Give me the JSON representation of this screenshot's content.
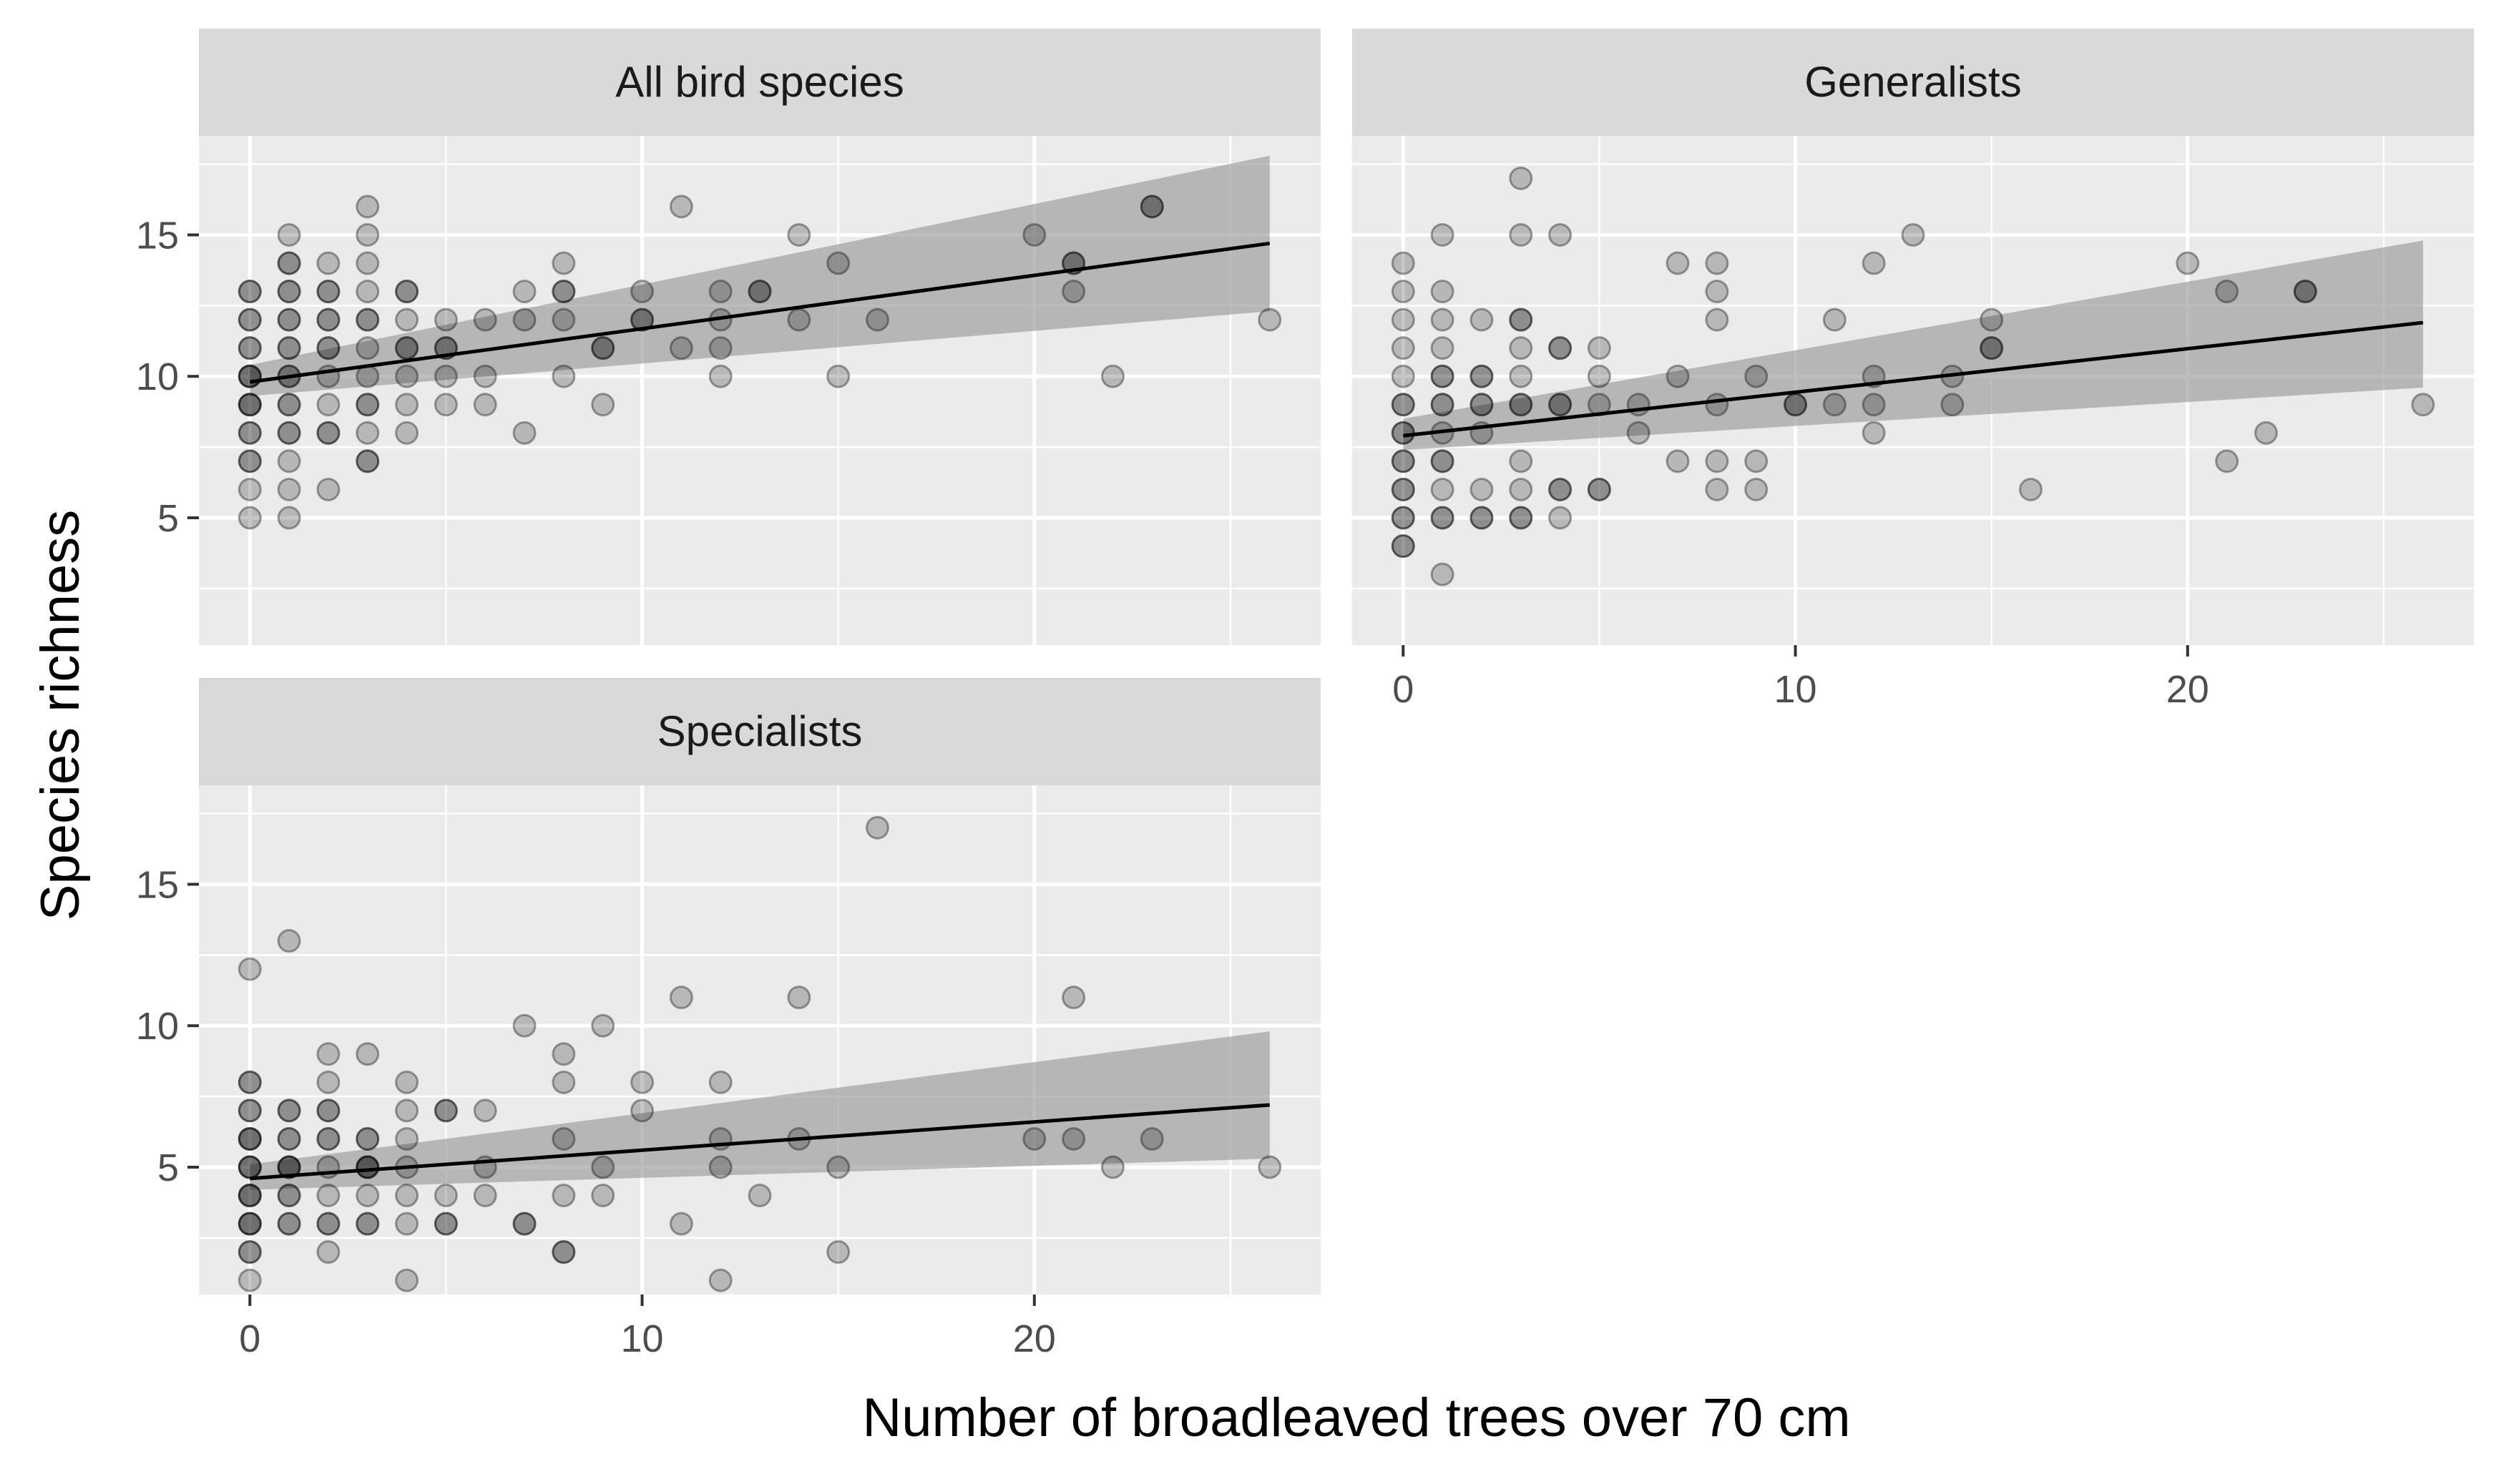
{
  "chart_data": {
    "type": "scatter",
    "xlabel": "Number of broadleaved trees over 70 cm",
    "ylabel": "Species richness",
    "xlim": [
      -1.3,
      27.3
    ],
    "ylim": [
      0.5,
      18.5
    ],
    "x_ticks": [
      0,
      10,
      20
    ],
    "y_ticks": [
      5,
      10,
      15
    ],
    "grid": true,
    "facets": [
      {
        "title": "All bird species",
        "fit": {
          "x": [
            0,
            26
          ],
          "y": [
            9.8,
            14.7
          ],
          "ci_low": [
            9.3,
            12.3
          ],
          "ci_high": [
            10.4,
            17.8
          ]
        },
        "points": [
          [
            0,
            5
          ],
          [
            0,
            6
          ],
          [
            0,
            7
          ],
          [
            0,
            7
          ],
          [
            0,
            8
          ],
          [
            0,
            8
          ],
          [
            0,
            9
          ],
          [
            0,
            9
          ],
          [
            0,
            9
          ],
          [
            0,
            10
          ],
          [
            0,
            10
          ],
          [
            0,
            10
          ],
          [
            0,
            11
          ],
          [
            0,
            11
          ],
          [
            0,
            12
          ],
          [
            0,
            12
          ],
          [
            0,
            13
          ],
          [
            0,
            13
          ],
          [
            1,
            5
          ],
          [
            1,
            6
          ],
          [
            1,
            7
          ],
          [
            1,
            8
          ],
          [
            1,
            8
          ],
          [
            1,
            9
          ],
          [
            1,
            9
          ],
          [
            1,
            10
          ],
          [
            1,
            10
          ],
          [
            1,
            11
          ],
          [
            1,
            11
          ],
          [
            1,
            12
          ],
          [
            1,
            12
          ],
          [
            1,
            13
          ],
          [
            1,
            13
          ],
          [
            1,
            14
          ],
          [
            1,
            14
          ],
          [
            1,
            15
          ],
          [
            2,
            6
          ],
          [
            2,
            8
          ],
          [
            2,
            8
          ],
          [
            2,
            9
          ],
          [
            2,
            10
          ],
          [
            2,
            11
          ],
          [
            2,
            11
          ],
          [
            2,
            12
          ],
          [
            2,
            12
          ],
          [
            2,
            13
          ],
          [
            2,
            13
          ],
          [
            2,
            14
          ],
          [
            3,
            7
          ],
          [
            3,
            7
          ],
          [
            3,
            8
          ],
          [
            3,
            9
          ],
          [
            3,
            9
          ],
          [
            3,
            10
          ],
          [
            3,
            11
          ],
          [
            3,
            12
          ],
          [
            3,
            12
          ],
          [
            3,
            13
          ],
          [
            3,
            14
          ],
          [
            3,
            15
          ],
          [
            3,
            16
          ],
          [
            4,
            8
          ],
          [
            4,
            9
          ],
          [
            4,
            10
          ],
          [
            4,
            11
          ],
          [
            4,
            11
          ],
          [
            4,
            12
          ],
          [
            4,
            13
          ],
          [
            4,
            13
          ],
          [
            5,
            9
          ],
          [
            5,
            10
          ],
          [
            5,
            11
          ],
          [
            5,
            11
          ],
          [
            5,
            12
          ],
          [
            6,
            9
          ],
          [
            6,
            10
          ],
          [
            6,
            12
          ],
          [
            7,
            8
          ],
          [
            7,
            12
          ],
          [
            7,
            13
          ],
          [
            8,
            10
          ],
          [
            8,
            12
          ],
          [
            8,
            13
          ],
          [
            8,
            13
          ],
          [
            8,
            14
          ],
          [
            9,
            9
          ],
          [
            9,
            11
          ],
          [
            9,
            11
          ],
          [
            10,
            12
          ],
          [
            10,
            12
          ],
          [
            10,
            13
          ],
          [
            11,
            11
          ],
          [
            11,
            16
          ],
          [
            12,
            10
          ],
          [
            12,
            11
          ],
          [
            12,
            12
          ],
          [
            12,
            13
          ],
          [
            13,
            13
          ],
          [
            13,
            13
          ],
          [
            14,
            12
          ],
          [
            14,
            15
          ],
          [
            15,
            10
          ],
          [
            15,
            14
          ],
          [
            16,
            12
          ],
          [
            20,
            15
          ],
          [
            21,
            13
          ],
          [
            21,
            14
          ],
          [
            21,
            14
          ],
          [
            22,
            10
          ],
          [
            23,
            16
          ],
          [
            23,
            16
          ],
          [
            26,
            12
          ]
        ]
      },
      {
        "title": "Generalists",
        "fit": {
          "x": [
            0,
            26
          ],
          "y": [
            7.9,
            11.9
          ],
          "ci_low": [
            7.4,
            9.6
          ],
          "ci_high": [
            8.5,
            14.8
          ]
        },
        "points": [
          [
            0,
            4
          ],
          [
            0,
            4
          ],
          [
            0,
            5
          ],
          [
            0,
            5
          ],
          [
            0,
            6
          ],
          [
            0,
            6
          ],
          [
            0,
            7
          ],
          [
            0,
            7
          ],
          [
            0,
            8
          ],
          [
            0,
            8
          ],
          [
            0,
            9
          ],
          [
            0,
            9
          ],
          [
            0,
            10
          ],
          [
            0,
            11
          ],
          [
            0,
            12
          ],
          [
            0,
            13
          ],
          [
            0,
            14
          ],
          [
            1,
            3
          ],
          [
            1,
            5
          ],
          [
            1,
            5
          ],
          [
            1,
            6
          ],
          [
            1,
            7
          ],
          [
            1,
            7
          ],
          [
            1,
            8
          ],
          [
            1,
            9
          ],
          [
            1,
            9
          ],
          [
            1,
            10
          ],
          [
            1,
            10
          ],
          [
            1,
            11
          ],
          [
            1,
            12
          ],
          [
            1,
            13
          ],
          [
            1,
            15
          ],
          [
            2,
            5
          ],
          [
            2,
            5
          ],
          [
            2,
            6
          ],
          [
            2,
            8
          ],
          [
            2,
            9
          ],
          [
            2,
            9
          ],
          [
            2,
            10
          ],
          [
            2,
            10
          ],
          [
            2,
            12
          ],
          [
            3,
            5
          ],
          [
            3,
            5
          ],
          [
            3,
            6
          ],
          [
            3,
            7
          ],
          [
            3,
            9
          ],
          [
            3,
            9
          ],
          [
            3,
            10
          ],
          [
            3,
            11
          ],
          [
            3,
            12
          ],
          [
            3,
            12
          ],
          [
            3,
            15
          ],
          [
            3,
            17
          ],
          [
            4,
            5
          ],
          [
            4,
            6
          ],
          [
            4,
            6
          ],
          [
            4,
            9
          ],
          [
            4,
            9
          ],
          [
            4,
            11
          ],
          [
            4,
            11
          ],
          [
            4,
            15
          ],
          [
            5,
            6
          ],
          [
            5,
            6
          ],
          [
            5,
            9
          ],
          [
            5,
            10
          ],
          [
            5,
            11
          ],
          [
            6,
            8
          ],
          [
            6,
            9
          ],
          [
            7,
            7
          ],
          [
            7,
            10
          ],
          [
            7,
            14
          ],
          [
            8,
            6
          ],
          [
            8,
            7
          ],
          [
            8,
            9
          ],
          [
            8,
            12
          ],
          [
            8,
            13
          ],
          [
            8,
            14
          ],
          [
            9,
            6
          ],
          [
            9,
            7
          ],
          [
            9,
            10
          ],
          [
            10,
            9
          ],
          [
            10,
            9
          ],
          [
            11,
            9
          ],
          [
            11,
            12
          ],
          [
            12,
            8
          ],
          [
            12,
            9
          ],
          [
            12,
            10
          ],
          [
            12,
            14
          ],
          [
            13,
            15
          ],
          [
            14,
            9
          ],
          [
            14,
            10
          ],
          [
            15,
            11
          ],
          [
            15,
            11
          ],
          [
            15,
            12
          ],
          [
            16,
            6
          ],
          [
            20,
            14
          ],
          [
            21,
            7
          ],
          [
            21,
            13
          ],
          [
            22,
            8
          ],
          [
            23,
            13
          ],
          [
            23,
            13
          ],
          [
            26,
            9
          ]
        ]
      },
      {
        "title": "Specialists",
        "fit": {
          "x": [
            0,
            26
          ],
          "y": [
            4.6,
            7.2
          ],
          "ci_low": [
            4.2,
            5.3
          ],
          "ci_high": [
            5.1,
            9.8
          ]
        },
        "points": [
          [
            0,
            1
          ],
          [
            0,
            2
          ],
          [
            0,
            2
          ],
          [
            0,
            3
          ],
          [
            0,
            3
          ],
          [
            0,
            3
          ],
          [
            0,
            4
          ],
          [
            0,
            4
          ],
          [
            0,
            4
          ],
          [
            0,
            5
          ],
          [
            0,
            5
          ],
          [
            0,
            5
          ],
          [
            0,
            6
          ],
          [
            0,
            6
          ],
          [
            0,
            6
          ],
          [
            0,
            7
          ],
          [
            0,
            7
          ],
          [
            0,
            8
          ],
          [
            0,
            8
          ],
          [
            0,
            12
          ],
          [
            1,
            3
          ],
          [
            1,
            3
          ],
          [
            1,
            4
          ],
          [
            1,
            4
          ],
          [
            1,
            5
          ],
          [
            1,
            5
          ],
          [
            1,
            5
          ],
          [
            1,
            6
          ],
          [
            1,
            6
          ],
          [
            1,
            7
          ],
          [
            1,
            7
          ],
          [
            1,
            13
          ],
          [
            2,
            2
          ],
          [
            2,
            3
          ],
          [
            2,
            3
          ],
          [
            2,
            4
          ],
          [
            2,
            5
          ],
          [
            2,
            6
          ],
          [
            2,
            6
          ],
          [
            2,
            7
          ],
          [
            2,
            7
          ],
          [
            2,
            8
          ],
          [
            2,
            9
          ],
          [
            3,
            3
          ],
          [
            3,
            3
          ],
          [
            3,
            4
          ],
          [
            3,
            5
          ],
          [
            3,
            5
          ],
          [
            3,
            5
          ],
          [
            3,
            6
          ],
          [
            3,
            6
          ],
          [
            3,
            9
          ],
          [
            4,
            1
          ],
          [
            4,
            3
          ],
          [
            4,
            4
          ],
          [
            4,
            5
          ],
          [
            4,
            6
          ],
          [
            4,
            7
          ],
          [
            4,
            8
          ],
          [
            5,
            3
          ],
          [
            5,
            3
          ],
          [
            5,
            4
          ],
          [
            5,
            7
          ],
          [
            5,
            7
          ],
          [
            6,
            4
          ],
          [
            6,
            5
          ],
          [
            6,
            7
          ],
          [
            7,
            3
          ],
          [
            7,
            3
          ],
          [
            7,
            10
          ],
          [
            8,
            2
          ],
          [
            8,
            2
          ],
          [
            8,
            4
          ],
          [
            8,
            6
          ],
          [
            8,
            8
          ],
          [
            8,
            9
          ],
          [
            9,
            4
          ],
          [
            9,
            5
          ],
          [
            9,
            10
          ],
          [
            10,
            7
          ],
          [
            10,
            8
          ],
          [
            11,
            3
          ],
          [
            11,
            11
          ],
          [
            12,
            1
          ],
          [
            12,
            5
          ],
          [
            12,
            6
          ],
          [
            12,
            8
          ],
          [
            13,
            4
          ],
          [
            14,
            6
          ],
          [
            14,
            11
          ],
          [
            15,
            2
          ],
          [
            15,
            5
          ],
          [
            16,
            17
          ],
          [
            20,
            6
          ],
          [
            21,
            6
          ],
          [
            21,
            11
          ],
          [
            22,
            5
          ],
          [
            23,
            6
          ],
          [
            26,
            5
          ]
        ]
      }
    ]
  }
}
